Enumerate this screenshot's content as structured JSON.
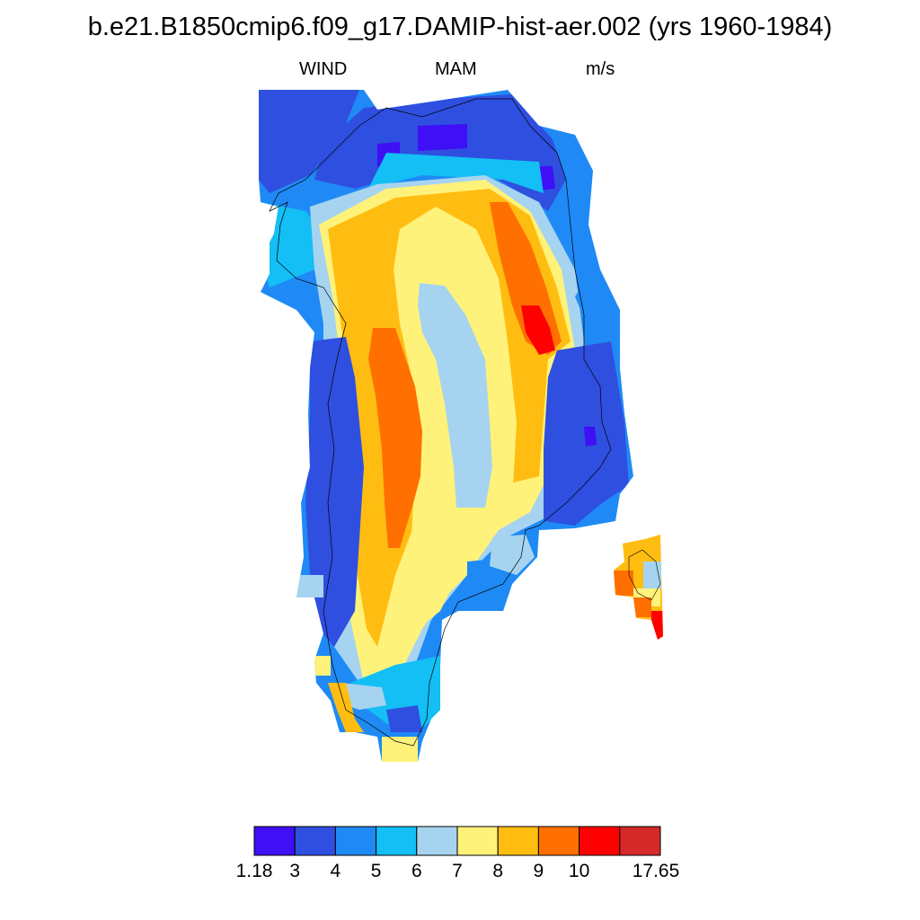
{
  "title": "b.e21.B1850cmip6.f09_g17.DAMIP-hist-aer.002 (yrs 1960-1984)",
  "subtitle_left": "WIND",
  "subtitle_center": "MAM",
  "subtitle_right": "m/s",
  "colorbar": {
    "colors": [
      "#3f0ff5",
      "#2f4fe0",
      "#1f8af5",
      "#13bff5",
      "#a6d4f0",
      "#fff27a",
      "#ffbd12",
      "#ff7000",
      "#ff0000",
      "#d42a2a"
    ],
    "labels": [
      "1.18",
      "3",
      "4",
      "5",
      "6",
      "7",
      "8",
      "9",
      "10",
      "17.65"
    ]
  }
}
